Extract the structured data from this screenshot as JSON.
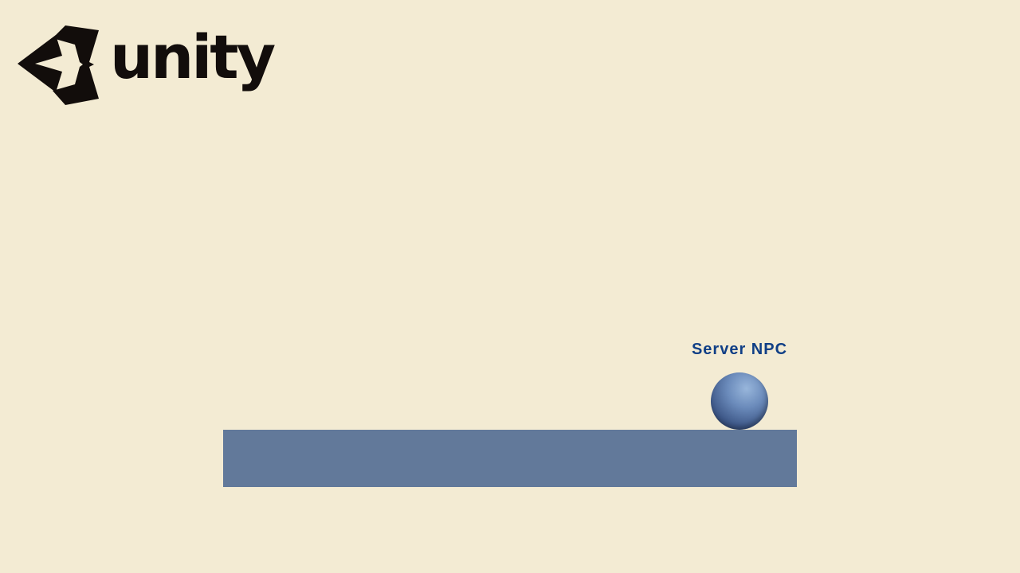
{
  "logo": {
    "wordmark": "unity",
    "icon": "unity-cube-icon"
  },
  "scene": {
    "npc": {
      "label": "Server NPC",
      "icon": "sphere",
      "label_color": "#103f86",
      "sphere_color": "#5b78a8"
    },
    "ground": {
      "color": "#62799a"
    },
    "background_color": "#f3ebd3"
  }
}
